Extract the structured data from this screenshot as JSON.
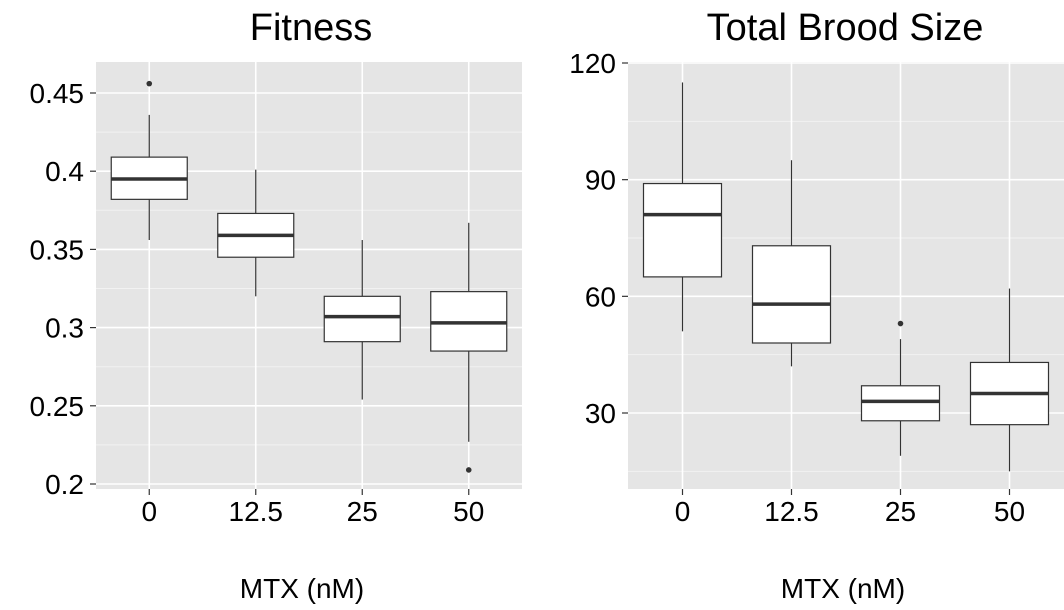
{
  "chart_data": [
    {
      "type": "boxplot",
      "title": "Fitness",
      "xlabel": "MTX (nM)",
      "ylabel": "",
      "categories": [
        "0",
        "12.5",
        "25",
        "50"
      ],
      "ylim": [
        0.195,
        0.47
      ],
      "yticks": [
        0.2,
        0.25,
        0.3,
        0.35,
        0.4,
        0.45
      ],
      "ytick_labels": [
        "0.2",
        "0.25",
        "0.3",
        "0.35",
        "0.4",
        "0.45"
      ],
      "grid": true,
      "boxes": [
        {
          "category": "0",
          "whisker_low": 0.356,
          "q1": 0.382,
          "median": 0.395,
          "q3": 0.409,
          "whisker_high": 0.436,
          "outliers": [
            0.456
          ]
        },
        {
          "category": "12.5",
          "whisker_low": 0.32,
          "q1": 0.345,
          "median": 0.359,
          "q3": 0.373,
          "whisker_high": 0.401,
          "outliers": []
        },
        {
          "category": "25",
          "whisker_low": 0.254,
          "q1": 0.291,
          "median": 0.307,
          "q3": 0.32,
          "whisker_high": 0.356,
          "outliers": []
        },
        {
          "category": "50",
          "whisker_low": 0.227,
          "q1": 0.285,
          "median": 0.303,
          "q3": 0.323,
          "whisker_high": 0.367,
          "outliers": [
            0.209
          ]
        }
      ]
    },
    {
      "type": "boxplot",
      "title": "Total Brood Size",
      "xlabel": "MTX (nM)",
      "ylabel": "",
      "categories": [
        "0",
        "12.5",
        "25",
        "50"
      ],
      "ylim": [
        10,
        120
      ],
      "yticks": [
        30,
        60,
        90,
        120
      ],
      "ytick_labels": [
        "30",
        "60",
        "90",
        "120"
      ],
      "grid": true,
      "boxes": [
        {
          "category": "0",
          "whisker_low": 51,
          "q1": 65,
          "median": 81,
          "q3": 89,
          "whisker_high": 115,
          "outliers": []
        },
        {
          "category": "12.5",
          "whisker_low": 42,
          "q1": 48,
          "median": 58,
          "q3": 73,
          "whisker_high": 95,
          "outliers": []
        },
        {
          "category": "25",
          "whisker_low": 19,
          "q1": 28,
          "median": 33,
          "q3": 37,
          "whisker_high": 49,
          "outliers": [
            53
          ]
        },
        {
          "category": "50",
          "whisker_low": 15,
          "q1": 27,
          "median": 35,
          "q3": 43,
          "whisker_high": 62,
          "outliers": []
        }
      ]
    }
  ],
  "colors": {
    "panel_background": "#e5e5e5",
    "grid_major": "#ffffff",
    "grid_minor": "#f2f2f2",
    "box_fill": "#ffffff",
    "box_stroke": "#333333",
    "median": "#333333",
    "outlier": "#333333"
  }
}
